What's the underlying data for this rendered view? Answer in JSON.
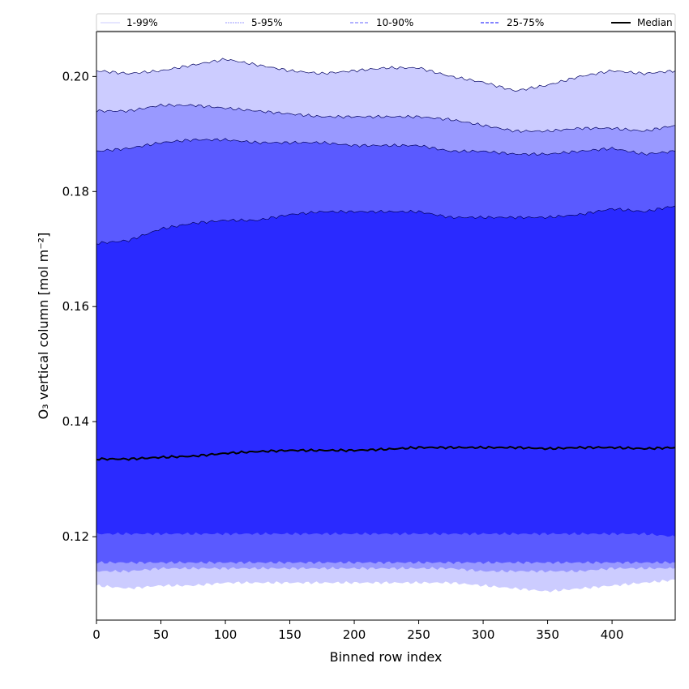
{
  "chart_data": {
    "type": "area",
    "xlabel": "Binned row index",
    "ylabel": "O₃ vertical column [mol m⁻²]",
    "xlim": [
      0,
      449
    ],
    "ylim": [
      0.1055,
      0.2078
    ],
    "xticks": [
      0,
      50,
      100,
      150,
      200,
      250,
      300,
      350,
      400
    ],
    "yticks": [
      0.12,
      0.14,
      0.16,
      0.18,
      0.2
    ],
    "ytick_labels": [
      "0.12",
      "0.14",
      "0.16",
      "0.18",
      "0.20"
    ],
    "grid": false,
    "legend_placement": "top",
    "x": [
      0,
      25,
      50,
      75,
      100,
      125,
      150,
      175,
      200,
      225,
      250,
      275,
      300,
      325,
      350,
      375,
      400,
      425,
      449
    ],
    "bands": [
      {
        "name": "1-99%",
        "color": "#ccccff",
        "upper": [
          0.201,
          0.2005,
          0.201,
          0.202,
          0.203,
          0.202,
          0.201,
          0.2005,
          0.201,
          0.2015,
          0.2015,
          0.2,
          0.199,
          0.1975,
          0.1985,
          0.2,
          0.201,
          0.2005,
          0.201
        ],
        "lower": [
          0.1115,
          0.111,
          0.1115,
          0.1115,
          0.112,
          0.112,
          0.112,
          0.112,
          0.112,
          0.112,
          0.112,
          0.112,
          0.1115,
          0.111,
          0.1105,
          0.111,
          0.1115,
          0.112,
          0.1125
        ]
      },
      {
        "name": "5-95%",
        "color": "#9999ff",
        "upper": [
          0.194,
          0.194,
          0.195,
          0.195,
          0.1945,
          0.194,
          0.1935,
          0.193,
          0.193,
          0.193,
          0.193,
          0.1925,
          0.1915,
          0.1905,
          0.1905,
          0.191,
          0.191,
          0.1905,
          0.1915
        ],
        "lower": [
          0.114,
          0.114,
          0.1145,
          0.1145,
          0.1145,
          0.1145,
          0.1145,
          0.1145,
          0.1145,
          0.1145,
          0.1145,
          0.1145,
          0.114,
          0.114,
          0.114,
          0.114,
          0.1145,
          0.1145,
          0.1145
        ]
      },
      {
        "name": "10-90%",
        "color": "#5a5aff",
        "upper": [
          0.187,
          0.1875,
          0.1885,
          0.189,
          0.189,
          0.1885,
          0.1885,
          0.1885,
          0.188,
          0.188,
          0.188,
          0.187,
          0.187,
          0.1865,
          0.1865,
          0.187,
          0.1875,
          0.1865,
          0.187
        ],
        "lower": [
          0.1155,
          0.1155,
          0.1155,
          0.1155,
          0.1155,
          0.1155,
          0.1155,
          0.1155,
          0.1155,
          0.1155,
          0.1155,
          0.1155,
          0.1155,
          0.1155,
          0.1155,
          0.1155,
          0.1155,
          0.1155,
          0.1155
        ]
      },
      {
        "name": "25-75%",
        "color": "#2a2aff",
        "upper": [
          0.171,
          0.1715,
          0.1735,
          0.1745,
          0.175,
          0.175,
          0.176,
          0.1765,
          0.1765,
          0.1765,
          0.1765,
          0.1755,
          0.1755,
          0.1755,
          0.1755,
          0.176,
          0.177,
          0.1765,
          0.1775
        ],
        "lower": [
          0.1205,
          0.1205,
          0.1205,
          0.1205,
          0.1205,
          0.1205,
          0.1205,
          0.1205,
          0.1205,
          0.1205,
          0.1205,
          0.1205,
          0.1205,
          0.1205,
          0.1205,
          0.1205,
          0.1205,
          0.1205,
          0.12
        ]
      }
    ],
    "median": {
      "name": "Median",
      "color": "#000000",
      "values": [
        0.1335,
        0.1335,
        0.1338,
        0.134,
        0.1345,
        0.1348,
        0.135,
        0.135,
        0.135,
        0.1352,
        0.1355,
        0.1355,
        0.1355,
        0.1355,
        0.1353,
        0.1355,
        0.1355,
        0.1353,
        0.1355
      ]
    },
    "legend": [
      {
        "label": "1-99%",
        "style": "thin-faint"
      },
      {
        "label": "5-95%",
        "style": "thin-dashed"
      },
      {
        "label": "10-90%",
        "style": "dashed"
      },
      {
        "label": "25-75%",
        "style": "dashed-dark"
      },
      {
        "label": "Median",
        "style": "solid-black"
      }
    ]
  }
}
